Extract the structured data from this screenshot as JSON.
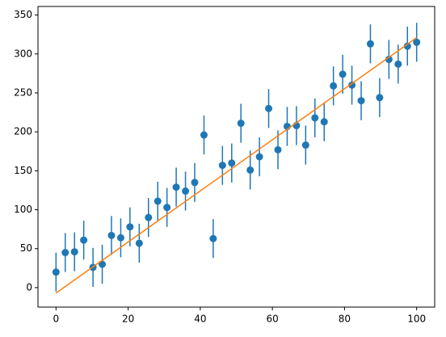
{
  "chart_data": {
    "type": "errorbar",
    "xlim": [
      -5,
      105
    ],
    "ylim": [
      -25,
      361
    ],
    "xticks": [
      0,
      20,
      40,
      60,
      80,
      100
    ],
    "yticks": [
      0,
      50,
      100,
      150,
      200,
      250,
      300,
      350
    ],
    "series": [
      {
        "type": "errorbar",
        "color": "#1f77b4",
        "yerr": 25,
        "x": [
          0,
          2.56,
          5.13,
          7.69,
          10.26,
          12.82,
          15.38,
          17.95,
          20.51,
          23.08,
          25.64,
          28.21,
          30.77,
          33.33,
          35.9,
          38.46,
          41.03,
          43.59,
          46.15,
          48.72,
          51.28,
          53.85,
          56.41,
          58.97,
          61.54,
          64.1,
          66.67,
          69.23,
          71.79,
          74.36,
          76.92,
          79.49,
          82.05,
          84.62,
          87.18,
          89.74,
          92.31,
          94.87,
          97.44,
          100
        ],
        "values": [
          20,
          45,
          46,
          61,
          26,
          30,
          67,
          64,
          78,
          57,
          90,
          111,
          103,
          129,
          124,
          135,
          196,
          63,
          157,
          160,
          211,
          151,
          168,
          230,
          177,
          207,
          208,
          183,
          218,
          213,
          259,
          274,
          260,
          240,
          313,
          244,
          293,
          287,
          310,
          315
        ]
      },
      {
        "type": "line",
        "color": "#ff7f0e",
        "x": [
          0,
          100
        ],
        "values": [
          -7,
          321
        ]
      }
    ]
  }
}
